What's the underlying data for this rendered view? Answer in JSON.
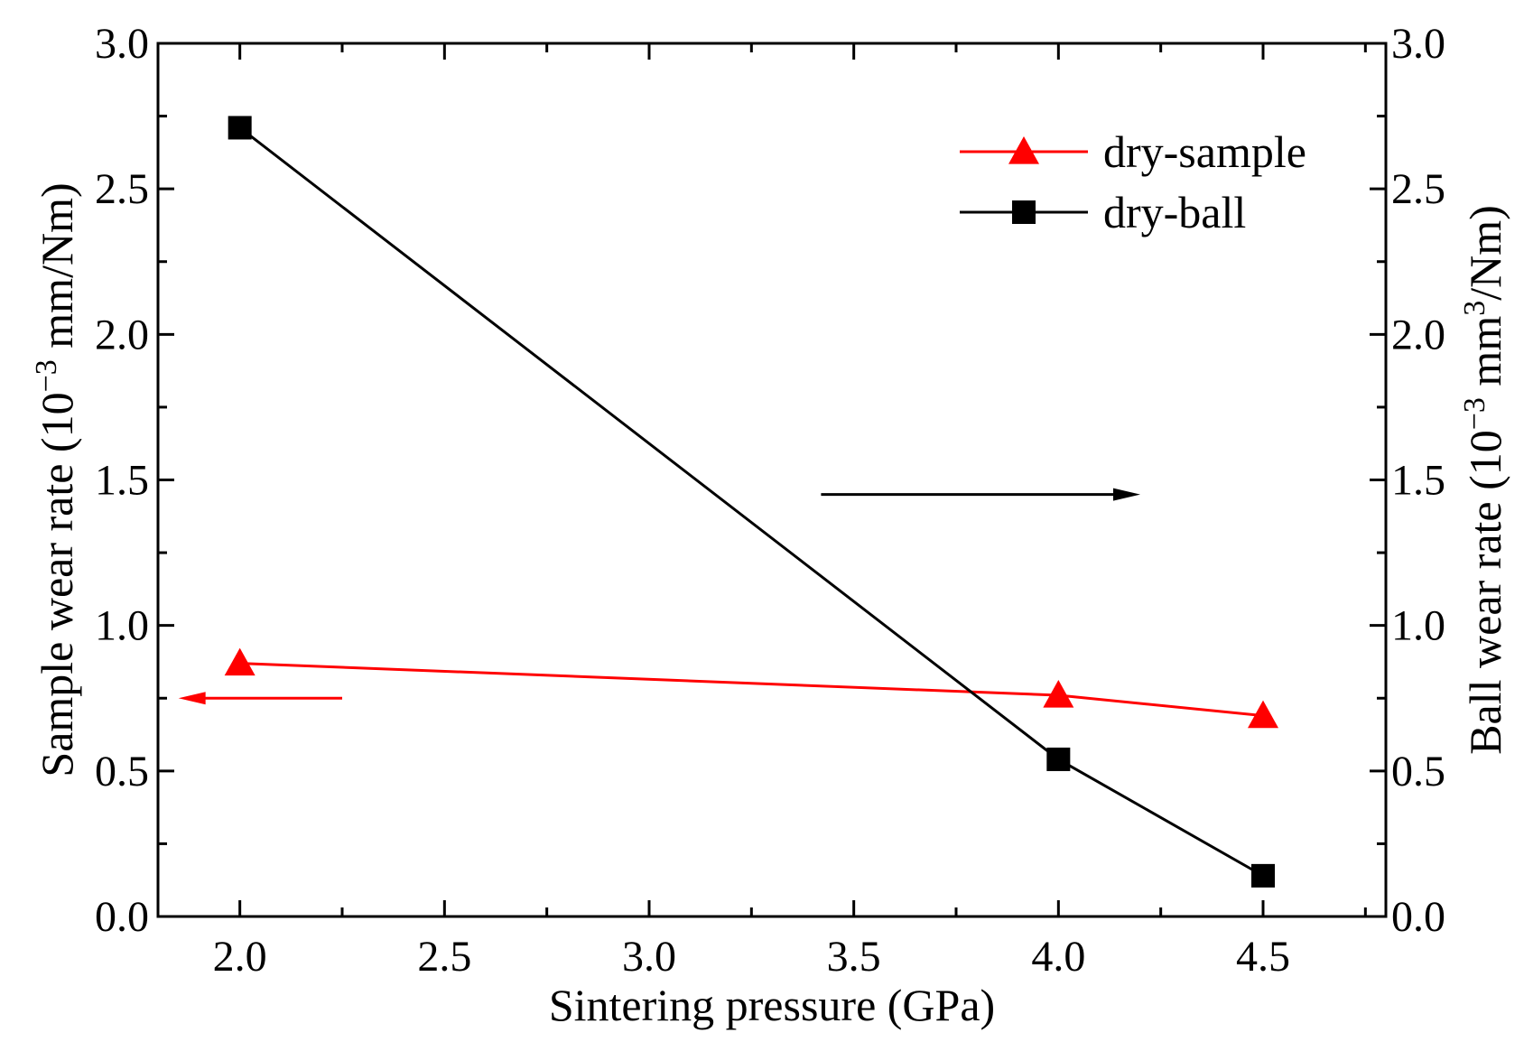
{
  "chart_data": {
    "type": "line",
    "xlabel": "Sintering pressure (GPa)",
    "ylabel_left": {
      "prefix": "Sample wear rate (10",
      "sup": "−3",
      "suffix": " mm/Nm)"
    },
    "ylabel_right": {
      "prefix": "Ball wear rate (10",
      "sup": "−3",
      "mid": " mm",
      "sup2": "3",
      "suffix": "/Nm)"
    },
    "xlim": [
      1.8,
      4.8
    ],
    "ylim_left": [
      0.0,
      3.0
    ],
    "ylim_right": [
      0.0,
      3.0
    ],
    "x_ticks": [
      "2.0",
      "2.5",
      "3.0",
      "3.5",
      "4.0",
      "4.5"
    ],
    "y_ticks_left": [
      "0.0",
      "0.5",
      "1.0",
      "1.5",
      "2.0",
      "2.5",
      "3.0"
    ],
    "y_ticks_right": [
      "0.0",
      "0.5",
      "1.0",
      "1.5",
      "2.0",
      "2.5",
      "3.0"
    ],
    "series": [
      {
        "name": "dry-sample",
        "axis": "left",
        "color": "#ff0000",
        "marker": "triangle",
        "x": [
          2.0,
          4.0,
          4.5
        ],
        "y": [
          0.87,
          0.76,
          0.69
        ]
      },
      {
        "name": "dry-ball",
        "axis": "right",
        "color": "#000000",
        "marker": "square",
        "x": [
          2.0,
          4.0,
          4.5
        ],
        "y": [
          2.71,
          0.54,
          0.14
        ]
      }
    ],
    "annotations": [
      {
        "type": "arrow",
        "direction": "left",
        "color": "#ff0000",
        "meaning": "dry-sample uses left axis"
      },
      {
        "type": "arrow",
        "direction": "right",
        "color": "#000000",
        "meaning": "dry-ball uses right axis"
      }
    ],
    "legend_position": "top-right"
  }
}
